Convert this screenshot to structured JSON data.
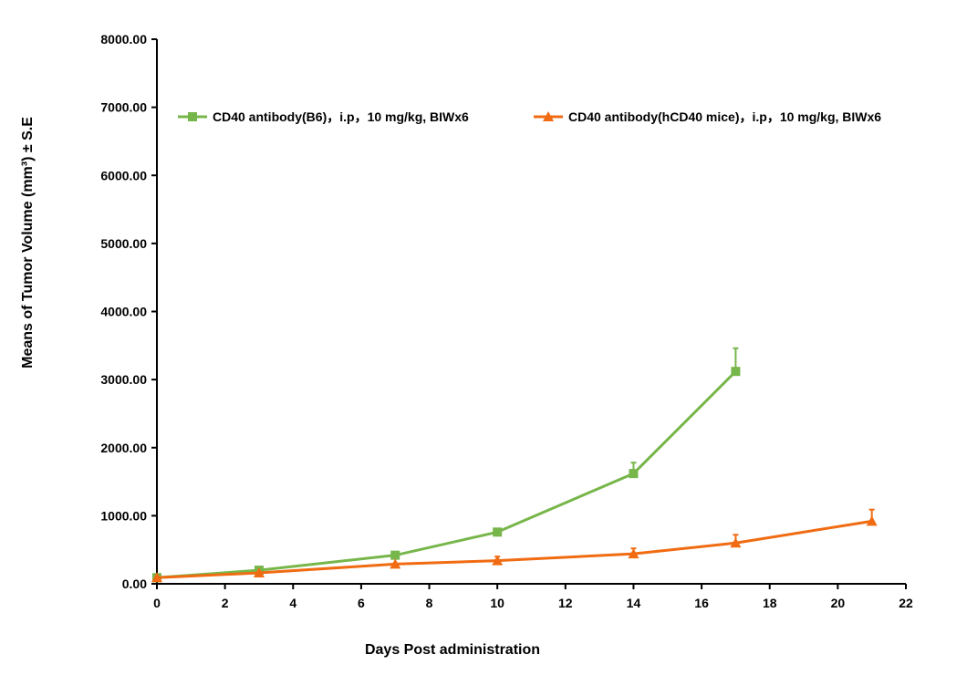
{
  "chart_data": {
    "type": "line",
    "xlabel": "Days Post administration",
    "ylabel": "Means of Tumor Volume (mm³) ± S.E",
    "xlim": [
      0,
      22
    ],
    "ylim": [
      0,
      8000
    ],
    "x_ticks": [
      "0",
      "2",
      "4",
      "6",
      "8",
      "10",
      "12",
      "14",
      "16",
      "18",
      "20",
      "22"
    ],
    "y_ticks": [
      "0.00",
      "1000.00",
      "2000.00",
      "3000.00",
      "4000.00",
      "5000.00",
      "6000.00",
      "7000.00",
      "8000.00"
    ],
    "grid": false,
    "legend_position": "top",
    "series": [
      {
        "name": "CD40 antibody(B6)，i.p，10 mg/kg, BIWx6",
        "color": "#77b64a",
        "marker": "square",
        "x": [
          0,
          3,
          7,
          10,
          14,
          17
        ],
        "y": [
          90,
          200,
          420,
          760,
          1620,
          3120
        ],
        "error": [
          0,
          0,
          0,
          0,
          160,
          340
        ]
      },
      {
        "name": "CD40 antibody(hCD40 mice)，i.p，10 mg/kg, BIWx6",
        "color": "#f06b12",
        "marker": "triangle",
        "x": [
          0,
          3,
          7,
          10,
          14,
          17,
          21
        ],
        "y": [
          90,
          160,
          290,
          340,
          440,
          600,
          920
        ],
        "error": [
          0,
          0,
          0,
          60,
          80,
          120,
          170
        ]
      }
    ]
  }
}
